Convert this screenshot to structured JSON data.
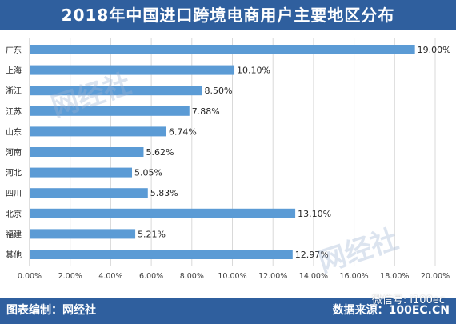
{
  "header": {
    "title": "2018年中国进口跨境电商用户主要地区分布"
  },
  "footer": {
    "left_text": "图表编制：网经社",
    "right_text": "数据来源：100EC.CN"
  },
  "watermark": {
    "text": "网经社"
  },
  "overlay": {
    "wechat_text": "微信号: i100ec"
  },
  "colors": {
    "bar": "#5b9bd5",
    "header_bg": "#2f5f9e",
    "grid": "#d9d9d9"
  },
  "chart_data": {
    "type": "bar",
    "orientation": "horizontal",
    "title": "2018年中国进口跨境电商用户主要地区分布",
    "categories": [
      "广东",
      "上海",
      "浙江",
      "江苏",
      "山东",
      "河南",
      "河北",
      "四川",
      "北京",
      "福建",
      "其他"
    ],
    "values": [
      19.0,
      10.1,
      8.5,
      7.88,
      6.74,
      5.62,
      5.05,
      5.83,
      13.1,
      5.21,
      12.97
    ],
    "value_labels": [
      "19.00%",
      "10.10%",
      "8.50%",
      "7.88%",
      "6.74%",
      "5.62%",
      "5.05%",
      "5.83%",
      "13.10%",
      "5.21%",
      "12.97%"
    ],
    "x_ticks": [
      0,
      2,
      4,
      6,
      8,
      10,
      12,
      14,
      16,
      18,
      20
    ],
    "x_tick_labels": [
      "0.00%",
      "2.00%",
      "4.00%",
      "6.00%",
      "8.00%",
      "10.00%",
      "12.00%",
      "14.00%",
      "16.00%",
      "18.00%",
      "20.00%"
    ],
    "xlim": [
      0,
      20
    ],
    "grid": true,
    "xlabel": "",
    "ylabel": ""
  }
}
